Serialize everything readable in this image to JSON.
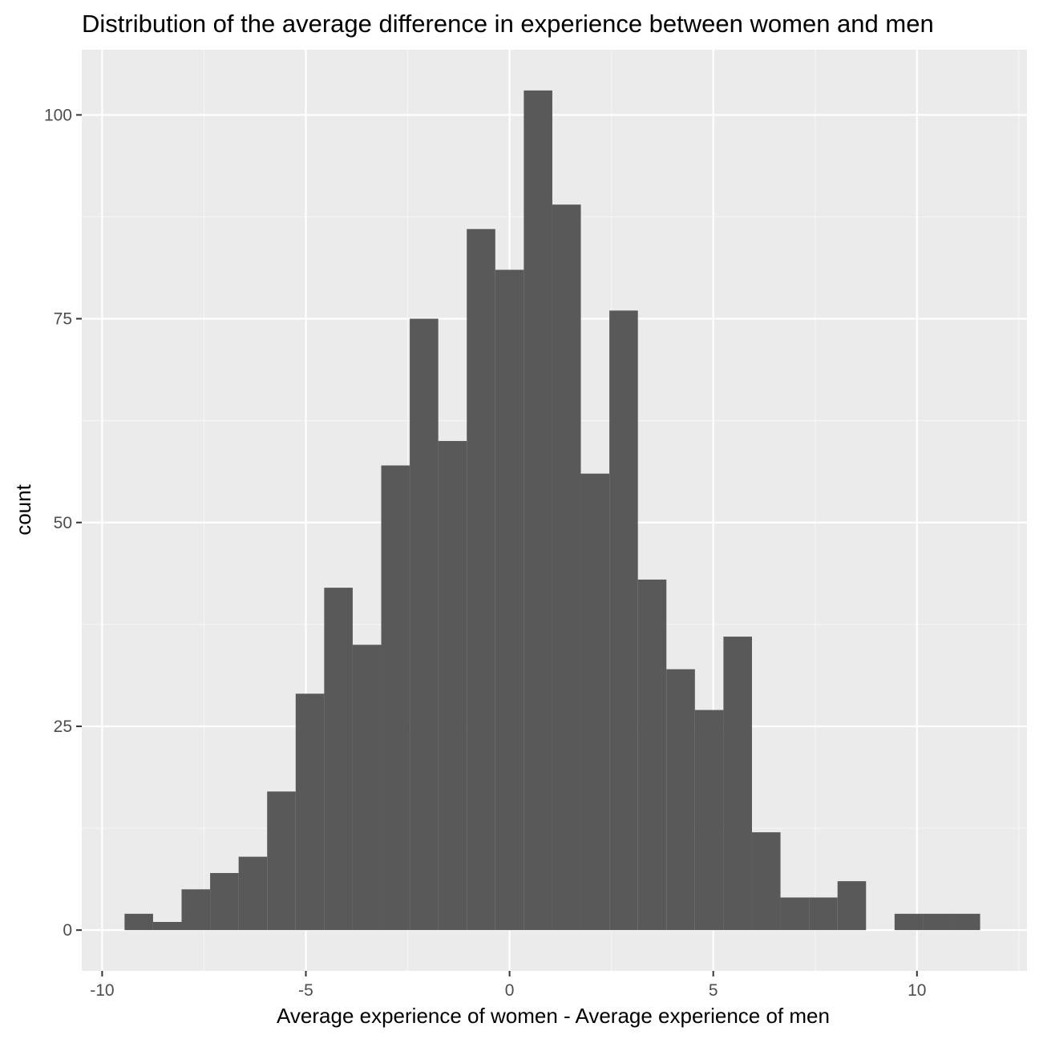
{
  "chart_data": {
    "type": "bar",
    "title": "Distribution of the average difference in experience between women and men",
    "xlabel": "Average experience of women - Average experience of men",
    "ylabel": "count",
    "xlim": [
      -10.5,
      12.7
    ],
    "ylim": [
      -5,
      108
    ],
    "x_ticks": [
      -10,
      -5,
      0,
      5,
      10
    ],
    "x_tick_labels": [
      "-10",
      "-5",
      "0",
      "5",
      "10"
    ],
    "y_ticks": [
      0,
      25,
      50,
      75,
      100
    ],
    "y_tick_labels": [
      "0",
      "25",
      "50",
      "75",
      "100"
    ],
    "grid": true,
    "bin_width": 0.7,
    "bin_centers": [
      -9.1,
      -8.4,
      -7.7,
      -7.0,
      -6.3,
      -5.6,
      -4.9,
      -4.2,
      -3.5,
      -2.8,
      -2.1,
      -1.4,
      -0.7,
      0.0,
      0.7,
      1.4,
      2.1,
      2.8,
      3.5,
      4.2,
      4.9,
      5.6,
      6.3,
      7.0,
      7.7,
      8.4,
      9.1,
      9.8,
      10.5,
      11.2
    ],
    "values": [
      2,
      1,
      5,
      7,
      9,
      17,
      29,
      42,
      35,
      57,
      75,
      60,
      86,
      81,
      103,
      89,
      56,
      76,
      43,
      32,
      27,
      36,
      12,
      4,
      4,
      6,
      0,
      2,
      2,
      2
    ],
    "colors": {
      "bar": "#595959",
      "panel": "#ebebeb",
      "grid_major": "#ffffff",
      "grid_minor": "#f5f5f5",
      "tick": "#333333"
    }
  }
}
